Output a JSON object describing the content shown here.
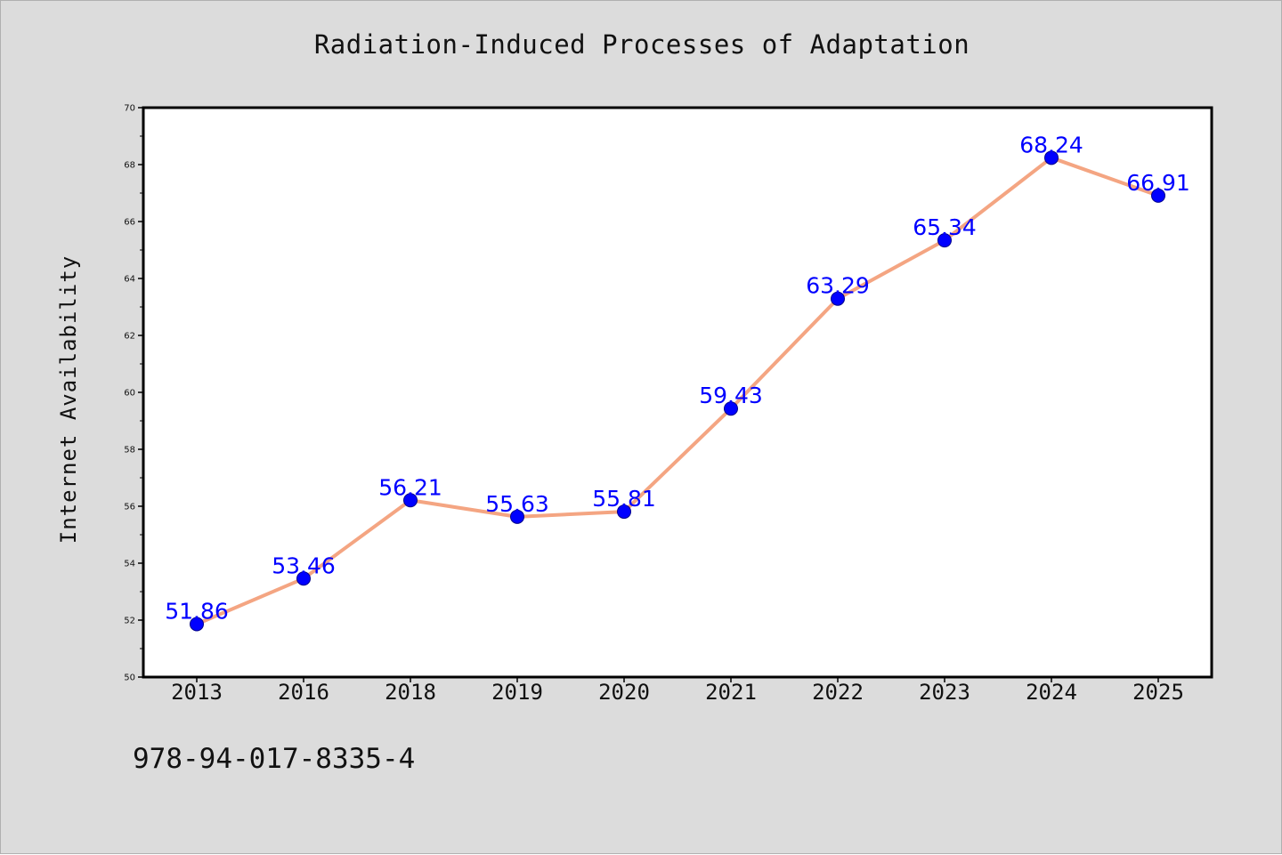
{
  "chart_data": {
    "type": "line",
    "title": "Radiation-Induced Processes of Adaptation",
    "xlabel": "",
    "ylabel": "Internet Availability",
    "categories": [
      "2013",
      "2016",
      "2018",
      "2019",
      "2020",
      "2021",
      "2022",
      "2023",
      "2024",
      "2025"
    ],
    "series": [
      {
        "values": [
          51.86,
          53.46,
          56.21,
          55.63,
          55.81,
          59.43,
          63.29,
          65.34,
          68.24,
          66.91
        ],
        "line_color": "#f4a582",
        "marker_color": "#0000ff"
      }
    ],
    "data_labels": [
      "51.86",
      "53.46",
      "56.21",
      "55.63",
      "55.81",
      "59.43",
      "63.29",
      "65.34",
      "68.24",
      "66.91"
    ],
    "data_label_color": "#0000ff",
    "ylim": [
      50,
      70
    ],
    "y_ticks": [
      "50",
      "52",
      "54",
      "56",
      "58",
      "60",
      "62",
      "64",
      "66",
      "68",
      "70"
    ],
    "grid": false,
    "legend": "none"
  },
  "footer": {
    "code": "978-94-017-8335-4"
  },
  "colors": {
    "background": "#dcdcdc",
    "plot_background": "#ffffff",
    "axis": "#000000"
  }
}
